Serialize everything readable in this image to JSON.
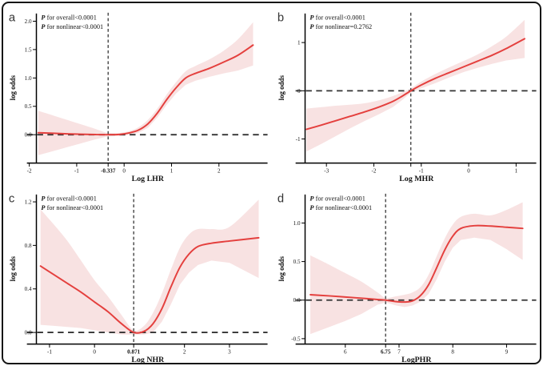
{
  "figure": {
    "background": "#ffffff",
    "border_color": "#161616"
  },
  "colors": {
    "line": "#E4403E",
    "band": "#F8E2E2",
    "dash": "#333333",
    "axis": "#000000",
    "text": "#111111"
  },
  "chart_data": [
    {
      "panel": "a",
      "type": "line",
      "xlabel": "Log LHR",
      "ylabel": "log odds",
      "p_lines": [
        {
          "prefix": "P",
          "text": " for overall<0.0001"
        },
        {
          "prefix": "P",
          "text": " for nonlinear<0.0001"
        }
      ],
      "xlim": [
        -2.0,
        3.0
      ],
      "ylim": [
        -0.5,
        2.15
      ],
      "x_ticks": [
        -2,
        -1,
        0,
        1,
        2
      ],
      "x_tick_labels": [
        "-2",
        "-1",
        "0",
        "1",
        "2"
      ],
      "y_ticks": [
        0,
        0.5,
        1,
        1.5,
        2
      ],
      "y_tick_labels": [
        "0.0",
        "0.5",
        "1.0",
        "1.5",
        "2.0"
      ],
      "ref_line_y": 0,
      "knot_x": -0.337,
      "knot_label": "-0.337",
      "x": [
        -1.81,
        -1.5,
        -1.2,
        -0.9,
        -0.6,
        -0.337,
        -0.1,
        0.1,
        0.3,
        0.5,
        0.7,
        0.9,
        1.1,
        1.3,
        1.5,
        1.8,
        2.1,
        2.4,
        2.72
      ],
      "y": [
        0.035,
        0.025,
        0.015,
        0.008,
        0.002,
        0,
        0.005,
        0.03,
        0.08,
        0.19,
        0.38,
        0.62,
        0.83,
        1.0,
        1.08,
        1.17,
        1.28,
        1.4,
        1.58
      ],
      "lo": [
        -0.36,
        -0.29,
        -0.22,
        -0.15,
        -0.08,
        -0.03,
        -0.02,
        0,
        0.03,
        0.12,
        0.3,
        0.53,
        0.73,
        0.88,
        0.95,
        1.02,
        1.08,
        1.13,
        1.22
      ],
      "hi": [
        0.42,
        0.34,
        0.26,
        0.18,
        0.1,
        0.03,
        0.03,
        0.06,
        0.13,
        0.26,
        0.46,
        0.71,
        0.93,
        1.12,
        1.21,
        1.33,
        1.48,
        1.68,
        1.98
      ]
    },
    {
      "panel": "b",
      "type": "line",
      "xlabel": "Log MHR",
      "ylabel": "log odds",
      "p_lines": [
        {
          "prefix": "P",
          "text": " for overall<0.0001"
        },
        {
          "prefix": "P",
          "text": " for nonlinear=0.2762"
        }
      ],
      "xlim": [
        -3.6,
        1.4
      ],
      "ylim": [
        -1.5,
        1.62
      ],
      "x_ticks": [
        -3,
        -2,
        -1,
        0,
        1
      ],
      "x_tick_labels": [
        "-3",
        "-2",
        "-1",
        "0",
        "1"
      ],
      "y_ticks": [
        -1,
        0,
        1
      ],
      "y_tick_labels": [
        "-1",
        "0",
        "1"
      ],
      "ref_line_y": 0,
      "knot_x": -1.22,
      "knot_label": null,
      "x": [
        -3.42,
        -3.1,
        -2.8,
        -2.5,
        -2.2,
        -1.9,
        -1.6,
        -1.4,
        -1.22,
        -1.0,
        -0.7,
        -0.4,
        -0.1,
        0.2,
        0.5,
        0.8,
        1.18
      ],
      "y": [
        -0.8,
        -0.71,
        -0.62,
        -0.53,
        -0.44,
        -0.34,
        -0.22,
        -0.11,
        0,
        0.12,
        0.26,
        0.38,
        0.5,
        0.62,
        0.74,
        0.88,
        1.08
      ],
      "lo": [
        -1.26,
        -1.1,
        -0.94,
        -0.78,
        -0.63,
        -0.49,
        -0.34,
        -0.19,
        -0.04,
        0.05,
        0.16,
        0.28,
        0.39,
        0.48,
        0.56,
        0.63,
        0.68
      ],
      "hi": [
        -0.37,
        -0.34,
        -0.31,
        -0.29,
        -0.26,
        -0.2,
        -0.11,
        -0.03,
        0.05,
        0.19,
        0.35,
        0.49,
        0.62,
        0.76,
        0.93,
        1.13,
        1.47
      ]
    },
    {
      "panel": "c",
      "type": "line",
      "xlabel": "Log NHR",
      "ylabel": "log odds",
      "p_lines": [
        {
          "prefix": "P",
          "text": " for overall<0.0001"
        },
        {
          "prefix": "P",
          "text": " for nonlinear<0.0001"
        }
      ],
      "xlim": [
        -1.45,
        3.82
      ],
      "ylim": [
        -0.107,
        1.275
      ],
      "x_ticks": [
        -1,
        0,
        2,
        3
      ],
      "x_tick_labels": [
        "-1",
        "0",
        "2",
        "3"
      ],
      "y_ticks": [
        0,
        0.4,
        0.8,
        1.2
      ],
      "y_tick_labels": [
        "0.0",
        "0.4",
        "0.8",
        "1.2"
      ],
      "ref_line_y": 0,
      "knot_x": 0.871,
      "knot_label": "0.871",
      "x": [
        -1.2,
        -0.9,
        -0.6,
        -0.3,
        0,
        0.3,
        0.6,
        0.871,
        1.1,
        1.3,
        1.5,
        1.7,
        1.9,
        2.1,
        2.3,
        2.6,
        3.0,
        3.65
      ],
      "y": [
        0.61,
        0.53,
        0.45,
        0.37,
        0.28,
        0.19,
        0.08,
        0,
        0.01,
        0.08,
        0.22,
        0.42,
        0.6,
        0.72,
        0.79,
        0.82,
        0.84,
        0.87
      ],
      "lo": [
        0.07,
        0.06,
        0.05,
        0.04,
        0.02,
        0,
        -0.02,
        -0.02,
        -0.02,
        0,
        0.1,
        0.26,
        0.44,
        0.55,
        0.62,
        0.66,
        0.64,
        0.5
      ],
      "hi": [
        1.13,
        0.99,
        0.84,
        0.66,
        0.48,
        0.33,
        0.16,
        0.02,
        0.06,
        0.18,
        0.36,
        0.58,
        0.78,
        0.9,
        0.95,
        0.95,
        0.97,
        1.22
      ]
    },
    {
      "panel": "d",
      "type": "line",
      "xlabel": "LogPHR",
      "ylabel": "log odds",
      "p_lines": [
        {
          "prefix": "P",
          "text": " for overall<0.0001"
        },
        {
          "prefix": "P",
          "text": " for nonlinear<0.0001"
        }
      ],
      "xlim": [
        5.12,
        9.53
      ],
      "ylim": [
        -0.57,
        1.38
      ],
      "x_ticks": [
        6,
        7,
        8,
        9
      ],
      "x_tick_labels": [
        "6",
        "7",
        "8",
        "9"
      ],
      "y_ticks": [
        -0.5,
        0,
        0.5,
        1
      ],
      "y_tick_labels": [
        "-0.5",
        "0.0",
        "0.5",
        "1.0"
      ],
      "ref_line_y": 0,
      "knot_x": 6.75,
      "knot_label": "6.75",
      "x": [
        5.35,
        5.7,
        6.0,
        6.3,
        6.6,
        6.75,
        6.95,
        7.1,
        7.25,
        7.4,
        7.55,
        7.7,
        7.85,
        8.0,
        8.15,
        8.4,
        8.7,
        9.0,
        9.3
      ],
      "y": [
        0.07,
        0.055,
        0.04,
        0.025,
        0.008,
        0,
        -0.02,
        -0.025,
        -0.01,
        0.06,
        0.2,
        0.42,
        0.65,
        0.83,
        0.93,
        0.965,
        0.96,
        0.945,
        0.93
      ],
      "lo": [
        -0.44,
        -0.35,
        -0.27,
        -0.18,
        -0.06,
        -0.03,
        -0.07,
        -0.09,
        -0.07,
        -0.02,
        0.08,
        0.27,
        0.5,
        0.68,
        0.78,
        0.81,
        0.78,
        0.66,
        0.52
      ],
      "hi": [
        0.58,
        0.46,
        0.35,
        0.24,
        0.1,
        0.03,
        0.05,
        0.07,
        0.1,
        0.17,
        0.33,
        0.57,
        0.8,
        0.98,
        1.08,
        1.12,
        1.1,
        1.17,
        1.27
      ]
    }
  ]
}
